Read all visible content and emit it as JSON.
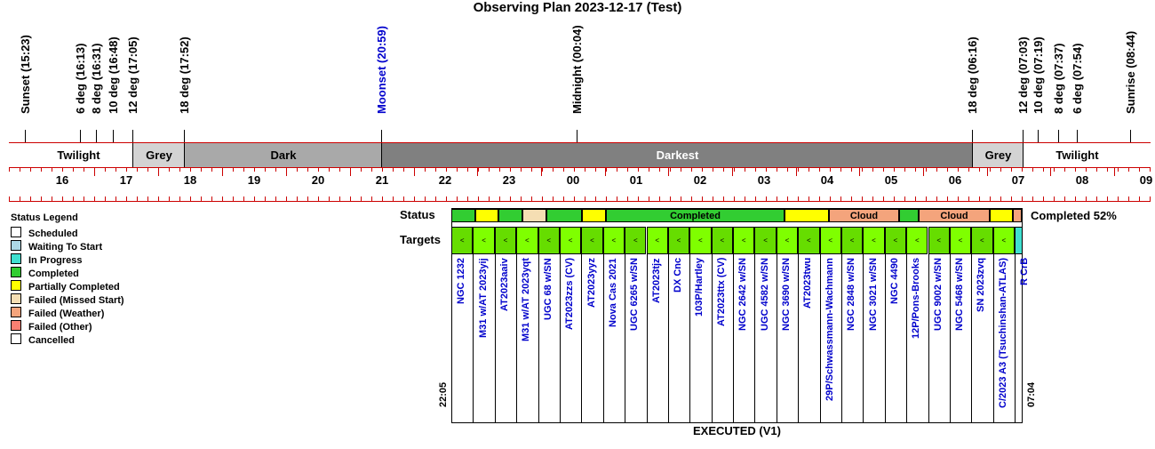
{
  "title": "Observing Plan 2023-12-17 (Test)",
  "events": [
    {
      "label": "Sunset (15:23)",
      "color": "#000000"
    },
    {
      "label": "6 deg (16:13)",
      "color": "#000000"
    },
    {
      "label": "8 deg (16:31)",
      "color": "#000000"
    },
    {
      "label": "10 deg (16:48)",
      "color": "#000000"
    },
    {
      "label": "12 deg (17:05)",
      "color": "#000000"
    },
    {
      "label": "18 deg (17:52)",
      "color": "#000000"
    },
    {
      "label": "Moonset (20:59)",
      "color": "#0000cc"
    },
    {
      "label": "Midnight (00:04)",
      "color": "#000000"
    },
    {
      "label": "18 deg (06:16)",
      "color": "#000000"
    },
    {
      "label": "12 deg (07:03)",
      "color": "#000000"
    },
    {
      "label": "10 deg (07:19)",
      "color": "#000000"
    },
    {
      "label": "8 deg (07:37)",
      "color": "#000000"
    },
    {
      "label": "6 deg (07:54)",
      "color": "#000000"
    },
    {
      "label": "Sunrise (08:44)",
      "color": "#000000"
    }
  ],
  "periods": [
    {
      "label": "Twilight",
      "color": "#ffffff",
      "text_color": "#000000"
    },
    {
      "label": "Grey",
      "color": "#d3d3d3",
      "text_color": "#000000"
    },
    {
      "label": "Dark",
      "color": "#a9a9a9",
      "text_color": "#000000"
    },
    {
      "label": "Darkest",
      "color": "#808080",
      "text_color": "#ffffff"
    },
    {
      "label": "Grey",
      "color": "#d3d3d3",
      "text_color": "#000000"
    },
    {
      "label": "Twilight",
      "color": "#ffffff",
      "text_color": "#000000"
    }
  ],
  "hours": [
    "16",
    "17",
    "18",
    "19",
    "20",
    "21",
    "22",
    "23",
    "00",
    "01",
    "02",
    "03",
    "04",
    "05",
    "06",
    "07",
    "08",
    "09"
  ],
  "legend": {
    "title": "Status Legend",
    "items": [
      {
        "label": "Scheduled",
        "color": "#ffffff"
      },
      {
        "label": "Waiting To Start",
        "color": "#add8e6"
      },
      {
        "label": "In Progress",
        "color": "#40e0d0"
      },
      {
        "label": "Completed",
        "color": "#32cd32"
      },
      {
        "label": "Partially Completed",
        "color": "#ffff00"
      },
      {
        "label": "Failed (Missed Start)",
        "color": "#f5deb3"
      },
      {
        "label": "Failed (Weather)",
        "color": "#f4a47c"
      },
      {
        "label": "Failed (Other)",
        "color": "#fa8072"
      },
      {
        "label": "Cancelled",
        "color": "#ffffff"
      }
    ]
  },
  "status_label": "Status",
  "targets_label": "Targets",
  "status_segments": [
    {
      "label": "",
      "color": "#32cd32"
    },
    {
      "label": "",
      "color": "#ffff00"
    },
    {
      "label": "",
      "color": "#32cd32"
    },
    {
      "label": "",
      "color": "#f5deb3"
    },
    {
      "label": "",
      "color": "#32cd32"
    },
    {
      "label": "",
      "color": "#ffff00"
    },
    {
      "label": "Completed",
      "color": "#32cd32"
    },
    {
      "label": "",
      "color": "#ffff00"
    },
    {
      "label": "Cloud",
      "color": "#f4a47c"
    },
    {
      "label": "",
      "color": "#32cd32"
    },
    {
      "label": "Cloud",
      "color": "#f4a47c"
    },
    {
      "label": "",
      "color": "#ffff00"
    },
    {
      "label": "",
      "color": "#f4a47c"
    }
  ],
  "completed_label": "Completed 52%",
  "targets": [
    "NGC 1232",
    "M31 w/AT 2023yij",
    "AT2023aaiv",
    "M31 w/AT 2023yqt",
    "UGC 68 w/SN",
    "AT2023zzs (CV)",
    "AT2023yyz",
    "Nova Cas 2021",
    "UGC 6265 w/SN",
    "AT2023tjz",
    "DX Cnc",
    "103P/Hartley",
    "AT2023ttx (CV)",
    "NGC 2642 w/SN",
    "UGC 4582 w/SN",
    "NGC 3690 w/SN",
    "AT2023twu",
    "29P/Schwassmann-Wachmann",
    "NGC 2848 w/SN",
    "NGC 3021 w/SN",
    "NGC 4490",
    "12P/Pons-Brooks",
    "UGC 9002 w/SN",
    "NGC 5468 w/SN",
    "SN 2023zvq",
    "C/2023 A3 (Tsuchinshan-ATLAS)",
    "R CrB"
  ],
  "target_marker": "<",
  "start_time": "22:05",
  "end_time": "07:04",
  "footer": "EXECUTED (V1)"
}
